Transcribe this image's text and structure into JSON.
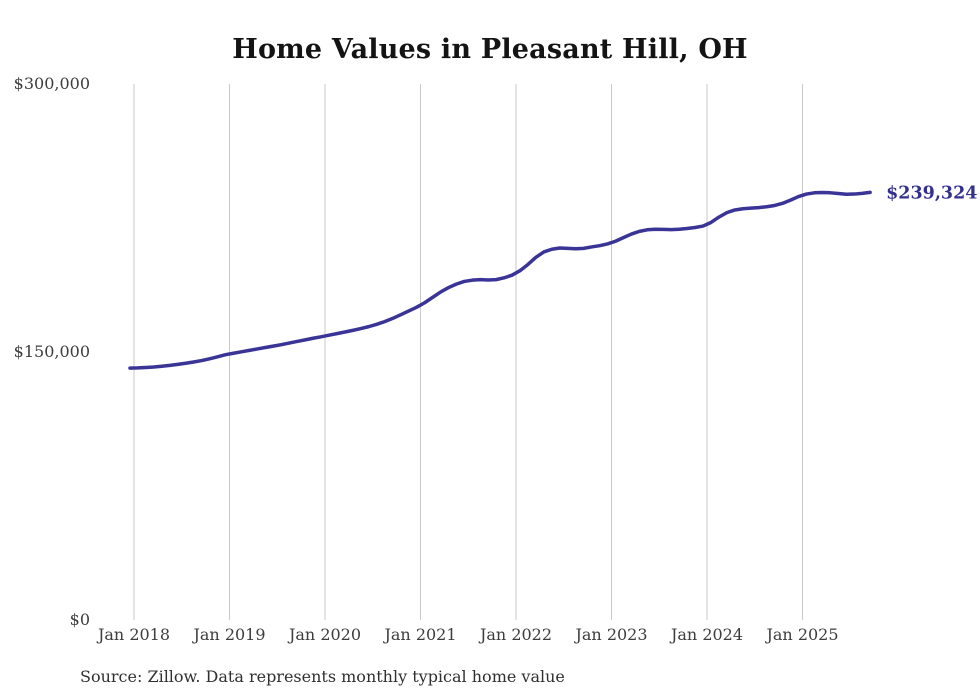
{
  "title": "Home Values in Pleasant Hill, OH",
  "source_note": "Source: Zillow. Data represents monthly typical home value",
  "colors": {
    "line": "#3a3497",
    "end_label": "#32308f",
    "grid": "#c9c9c9",
    "axis_text": "#3d3d3d",
    "title_text": "#141414",
    "source_text": "#303030",
    "background": "#ffffff"
  },
  "chart_data": {
    "type": "line",
    "title": "Home Values in Pleasant Hill, OH",
    "xlabel": "",
    "ylabel": "",
    "ylim": [
      0,
      300000
    ],
    "y_ticks": [
      0,
      150000,
      300000
    ],
    "y_tick_labels": [
      "$0",
      "$150,000",
      "$300,000"
    ],
    "x_tick_labels": [
      "Jan 2018",
      "Jan 2019",
      "Jan 2020",
      "Jan 2021",
      "Jan 2022",
      "Jan 2023",
      "Jan 2024",
      "Jan 2025"
    ],
    "grid": "vertical-only",
    "legend": "none",
    "end_label": "$239,324",
    "series": [
      {
        "name": "Typical home value",
        "start_month": "2018-01",
        "end_month": "2025-10",
        "values": [
          141000,
          141100,
          141300,
          141600,
          142000,
          142500,
          143100,
          143700,
          144400,
          145200,
          146200,
          147300,
          148500,
          149300,
          150100,
          150900,
          151700,
          152500,
          153300,
          154100,
          155000,
          155900,
          156800,
          157700,
          158500,
          159400,
          160300,
          161200,
          162100,
          163100,
          164200,
          165500,
          167000,
          168800,
          170800,
          172900,
          175000,
          177500,
          180500,
          183500,
          186000,
          188000,
          189500,
          190200,
          190500,
          190300,
          190500,
          191500,
          193000,
          195500,
          199000,
          203000,
          206000,
          207500,
          208200,
          208000,
          207800,
          208000,
          208800,
          209500,
          210500,
          212000,
          214000,
          216000,
          217500,
          218400,
          218700,
          218600,
          218500,
          218700,
          219100,
          219700,
          220500,
          222500,
          225500,
          228000,
          229500,
          230200,
          230500,
          230800,
          231300,
          232000,
          233200,
          235000,
          237000,
          238400,
          239100,
          239300,
          239100,
          238700,
          238300,
          238400,
          238800,
          239324
        ]
      }
    ]
  }
}
